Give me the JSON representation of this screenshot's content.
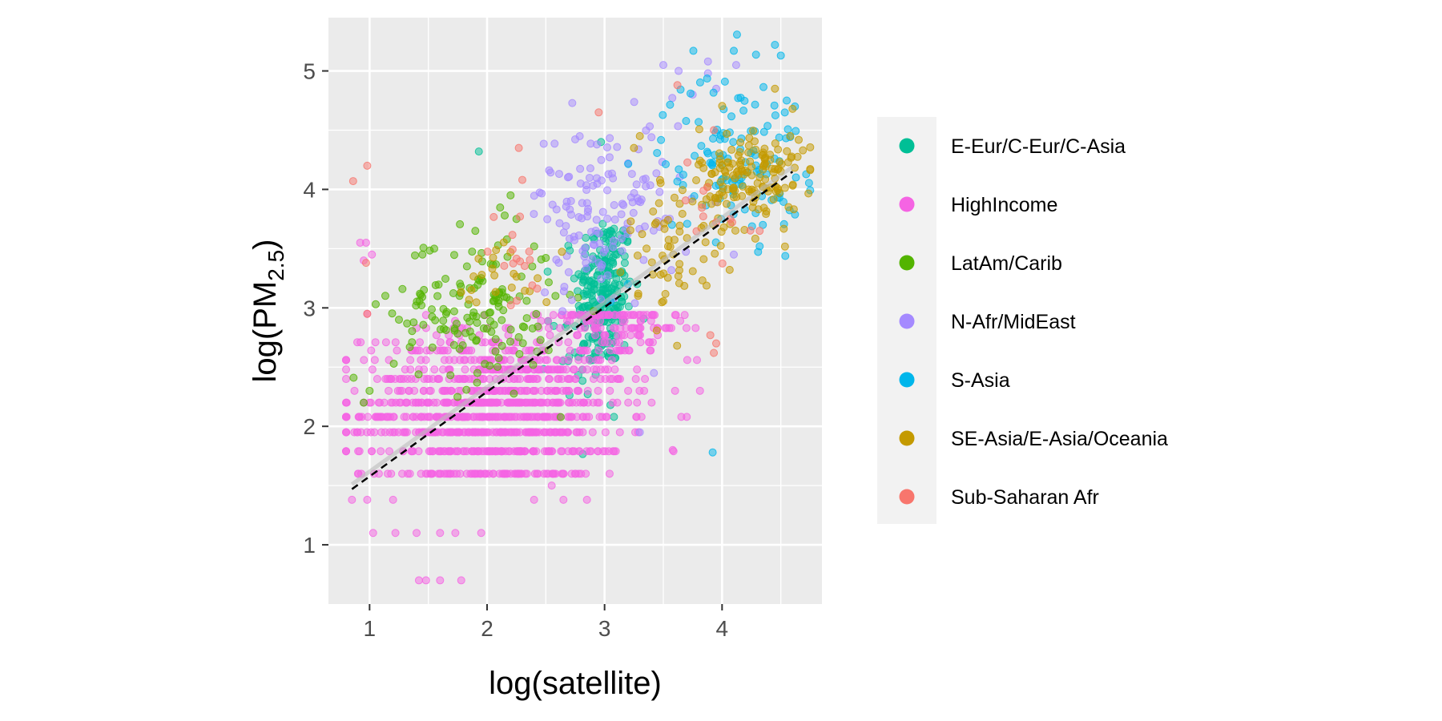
{
  "chart_data": {
    "type": "scatter",
    "title": "",
    "xlabel": "log(satellite)",
    "ylabel": {
      "main": "log(PM",
      "sub": "2.5",
      "close": ")"
    },
    "xlim": [
      0.65,
      4.85
    ],
    "ylim": [
      0.5,
      5.45
    ],
    "x_ticks": [
      1,
      2,
      3,
      4
    ],
    "y_ticks": [
      1,
      2,
      3,
      4,
      5
    ],
    "grid": true,
    "legend_position": "right",
    "fit_line": {
      "style": "dashed",
      "x": [
        0.85,
        4.6
      ],
      "y": [
        1.47,
        4.15
      ]
    },
    "series": [
      {
        "name": "E-Eur/C-Eur/C-Asia",
        "color": "#00BF96",
        "clusters": [
          {
            "cx": 3.0,
            "cy": 3.15,
            "sx": 0.12,
            "sy": 0.33,
            "n": 220
          },
          {
            "cx": 2.78,
            "cy": 2.65,
            "sx": 0.12,
            "sy": 0.2,
            "n": 35
          }
        ],
        "points": [
          [
            1.93,
            4.32
          ],
          [
            2.97,
            4.4
          ],
          [
            3.05,
            2.18
          ],
          [
            3.08,
            2.08
          ]
        ]
      },
      {
        "name": "HighIncome",
        "color": "#F564E3",
        "clusters": [
          {
            "cx": 2.05,
            "cy": 2.15,
            "sx": 0.55,
            "sy": 0.33,
            "n": 1000
          },
          {
            "cx": 3.1,
            "cy": 2.85,
            "sx": 0.3,
            "sy": 0.22,
            "n": 140
          }
        ],
        "points": [
          [
            1.42,
            0.7
          ],
          [
            1.48,
            0.7
          ],
          [
            1.6,
            0.7
          ],
          [
            1.78,
            0.7
          ],
          [
            1.03,
            1.1
          ],
          [
            1.22,
            1.1
          ],
          [
            1.4,
            1.1
          ],
          [
            1.6,
            1.1
          ],
          [
            1.73,
            1.1
          ],
          [
            1.95,
            1.1
          ],
          [
            0.85,
            1.38
          ],
          [
            0.98,
            1.38
          ],
          [
            1.2,
            1.38
          ],
          [
            2.4,
            1.38
          ],
          [
            2.65,
            1.38
          ],
          [
            2.85,
            1.38
          ],
          [
            2.55,
            1.5
          ],
          [
            0.92,
            3.55
          ],
          [
            0.97,
            3.55
          ],
          [
            0.95,
            3.4
          ],
          [
            1.02,
            3.45
          ],
          [
            0.98,
            2.95
          ],
          [
            3.6,
            2.3
          ],
          [
            3.58,
            1.8
          ]
        ],
        "row_levels": [
          1.6,
          1.79,
          1.95,
          2.08,
          2.2,
          2.3,
          2.4,
          2.48,
          2.56,
          2.64,
          2.71,
          2.77,
          2.83,
          2.89,
          2.94
        ]
      },
      {
        "name": "LatAm/Carib",
        "color": "#53B400",
        "clusters": [
          {
            "cx": 1.9,
            "cy": 3.0,
            "sx": 0.35,
            "sy": 0.32,
            "n": 150
          }
        ],
        "points": [
          [
            2.2,
            3.95
          ],
          [
            2.25,
            3.75
          ],
          [
            2.15,
            3.78
          ],
          [
            1.9,
            3.65
          ],
          [
            1.55,
            3.5
          ],
          [
            1.45,
            3.45
          ],
          [
            0.95,
            2.2
          ],
          [
            1.0,
            2.3
          ],
          [
            1.25,
            2.9
          ]
        ]
      },
      {
        "name": "N-Afr/MidEast",
        "color": "#A58AFF",
        "clusters": [
          {
            "cx": 3.05,
            "cy": 3.9,
            "sx": 0.35,
            "sy": 0.35,
            "n": 110
          },
          {
            "cx": 2.85,
            "cy": 3.5,
            "sx": 0.18,
            "sy": 0.22,
            "n": 30
          }
        ],
        "points": [
          [
            3.5,
            5.05
          ],
          [
            3.63,
            5.0
          ],
          [
            3.88,
            5.08
          ],
          [
            3.88,
            4.98
          ],
          [
            4.12,
            5.05
          ],
          [
            3.75,
            4.8
          ],
          [
            3.95,
            4.85
          ],
          [
            3.2,
            4.22
          ],
          [
            3.3,
            1.95
          ],
          [
            3.42,
            2.45
          ],
          [
            4.1,
            3.45
          ]
        ]
      },
      {
        "name": "S-Asia",
        "color": "#00B6EB",
        "clusters": [
          {
            "cx": 4.1,
            "cy": 4.3,
            "sx": 0.3,
            "sy": 0.35,
            "n": 120
          }
        ],
        "points": [
          [
            4.45,
            5.22
          ],
          [
            4.5,
            5.13
          ],
          [
            4.1,
            5.17
          ],
          [
            4.62,
            4.7
          ],
          [
            4.55,
            4.75
          ],
          [
            3.92,
            1.78
          ],
          [
            4.32,
            3.52
          ],
          [
            3.05,
            3.05
          ],
          [
            3.2,
            3.2
          ]
        ]
      },
      {
        "name": "SE-Asia/E-Asia/Oceania",
        "color": "#C49A00",
        "clusters": [
          {
            "cx": 4.25,
            "cy": 4.1,
            "sx": 0.22,
            "sy": 0.22,
            "n": 150
          },
          {
            "cx": 3.6,
            "cy": 3.55,
            "sx": 0.2,
            "sy": 0.3,
            "n": 60
          },
          {
            "cx": 2.15,
            "cy": 3.3,
            "sx": 0.2,
            "sy": 0.15,
            "n": 22
          }
        ],
        "points": [
          [
            4.45,
            4.85
          ],
          [
            4.6,
            4.68
          ],
          [
            4.58,
            4.45
          ],
          [
            3.3,
            4.45
          ],
          [
            3.25,
            4.35
          ]
        ]
      },
      {
        "name": "Sub-Saharan Afr",
        "color": "#F8766D",
        "clusters": [
          {
            "cx": 2.25,
            "cy": 3.4,
            "sx": 0.15,
            "sy": 0.2,
            "n": 15
          },
          {
            "cx": 3.85,
            "cy": 3.85,
            "sx": 0.2,
            "sy": 0.3,
            "n": 12
          }
        ],
        "points": [
          [
            0.98,
            4.2
          ],
          [
            0.86,
            4.07
          ],
          [
            2.27,
            4.35
          ],
          [
            2.3,
            4.08
          ],
          [
            2.28,
            3.77
          ],
          [
            2.95,
            4.65
          ],
          [
            3.62,
            4.88
          ],
          [
            3.93,
            4.5
          ],
          [
            3.9,
            2.77
          ],
          [
            3.93,
            2.62
          ],
          [
            3.95,
            2.7
          ],
          [
            4.32,
            3.65
          ],
          [
            0.98,
            2.95
          ],
          [
            0.97,
            3.38
          ]
        ]
      }
    ]
  }
}
